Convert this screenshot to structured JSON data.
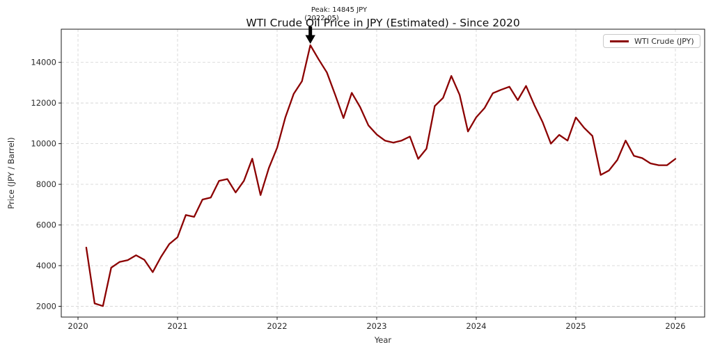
{
  "figure": {
    "background": "#ffffff"
  },
  "chart_data": {
    "type": "line",
    "title": "WTI Crude Oil Price in JPY (Estimated) - Since 2020",
    "xlabel": "Year",
    "ylabel": "Price (JPY / Barrel)",
    "grid": "dashed",
    "grid_color": "#d7d7d7",
    "x_ticks": [
      2020,
      2021,
      2022,
      2023,
      2024,
      2025,
      2026
    ],
    "y_ticks": [
      2000,
      4000,
      6000,
      8000,
      10000,
      12000,
      14000
    ],
    "xlim": [
      2019.832,
      2026.294
    ],
    "ylim": [
      1470,
      15630
    ],
    "frequency": "monthly",
    "legend": {
      "position": "upper right",
      "entries": [
        {
          "label": "WTI Crude (JPY)",
          "color": "#8b0000"
        }
      ]
    },
    "annotation": {
      "text_line1": "Peak: 14845 JPY",
      "text_line2": "(2022-05)",
      "peak_month": "2022-05",
      "peak_value_jpy": 14845,
      "arrow_color": "#000000"
    },
    "months": [
      "2020-02",
      "2020-03",
      "2020-04",
      "2020-05",
      "2020-06",
      "2020-07",
      "2020-08",
      "2020-09",
      "2020-10",
      "2020-11",
      "2020-12",
      "2021-01",
      "2021-02",
      "2021-03",
      "2021-04",
      "2021-05",
      "2021-06",
      "2021-07",
      "2021-08",
      "2021-09",
      "2021-10",
      "2021-11",
      "2021-12",
      "2022-01",
      "2022-02",
      "2022-03",
      "2022-04",
      "2022-05",
      "2022-06",
      "2022-07",
      "2022-08",
      "2022-09",
      "2022-10",
      "2022-11",
      "2022-12",
      "2023-01",
      "2023-02",
      "2023-03",
      "2023-04",
      "2023-05",
      "2023-06",
      "2023-07",
      "2023-08",
      "2023-09",
      "2023-10",
      "2023-11",
      "2023-12",
      "2024-01",
      "2024-02",
      "2024-03",
      "2024-04",
      "2024-05",
      "2024-06",
      "2024-07",
      "2024-08",
      "2024-09",
      "2024-10",
      "2024-11",
      "2024-12",
      "2025-01",
      "2025-02",
      "2025-03",
      "2025-04",
      "2025-05",
      "2025-06",
      "2025-07",
      "2025-08",
      "2025-09",
      "2025-10",
      "2025-11",
      "2025-12",
      "2026-01"
    ],
    "series": [
      {
        "name": "WTI Crude (JPY)",
        "color": "#8b0000",
        "values": [
          4890,
          2140,
          2010,
          3900,
          4180,
          4270,
          4510,
          4290,
          3680,
          4430,
          5060,
          5400,
          6490,
          6400,
          7250,
          7350,
          8170,
          8260,
          7600,
          8170,
          9260,
          7470,
          8800,
          9800,
          11300,
          12450,
          13070,
          14845,
          14150,
          13500,
          12400,
          11260,
          12500,
          11800,
          10900,
          10450,
          10150,
          10050,
          10150,
          10350,
          9250,
          9750,
          11850,
          12250,
          13330,
          12400,
          10600,
          11300,
          11750,
          12480,
          12650,
          12800,
          12140,
          12840,
          11900,
          11060,
          10000,
          10430,
          10150,
          11290,
          10780,
          10380,
          8460,
          8680,
          9200,
          10150,
          9400,
          9290,
          9030,
          8940,
          8940,
          9250
        ]
      }
    ]
  }
}
